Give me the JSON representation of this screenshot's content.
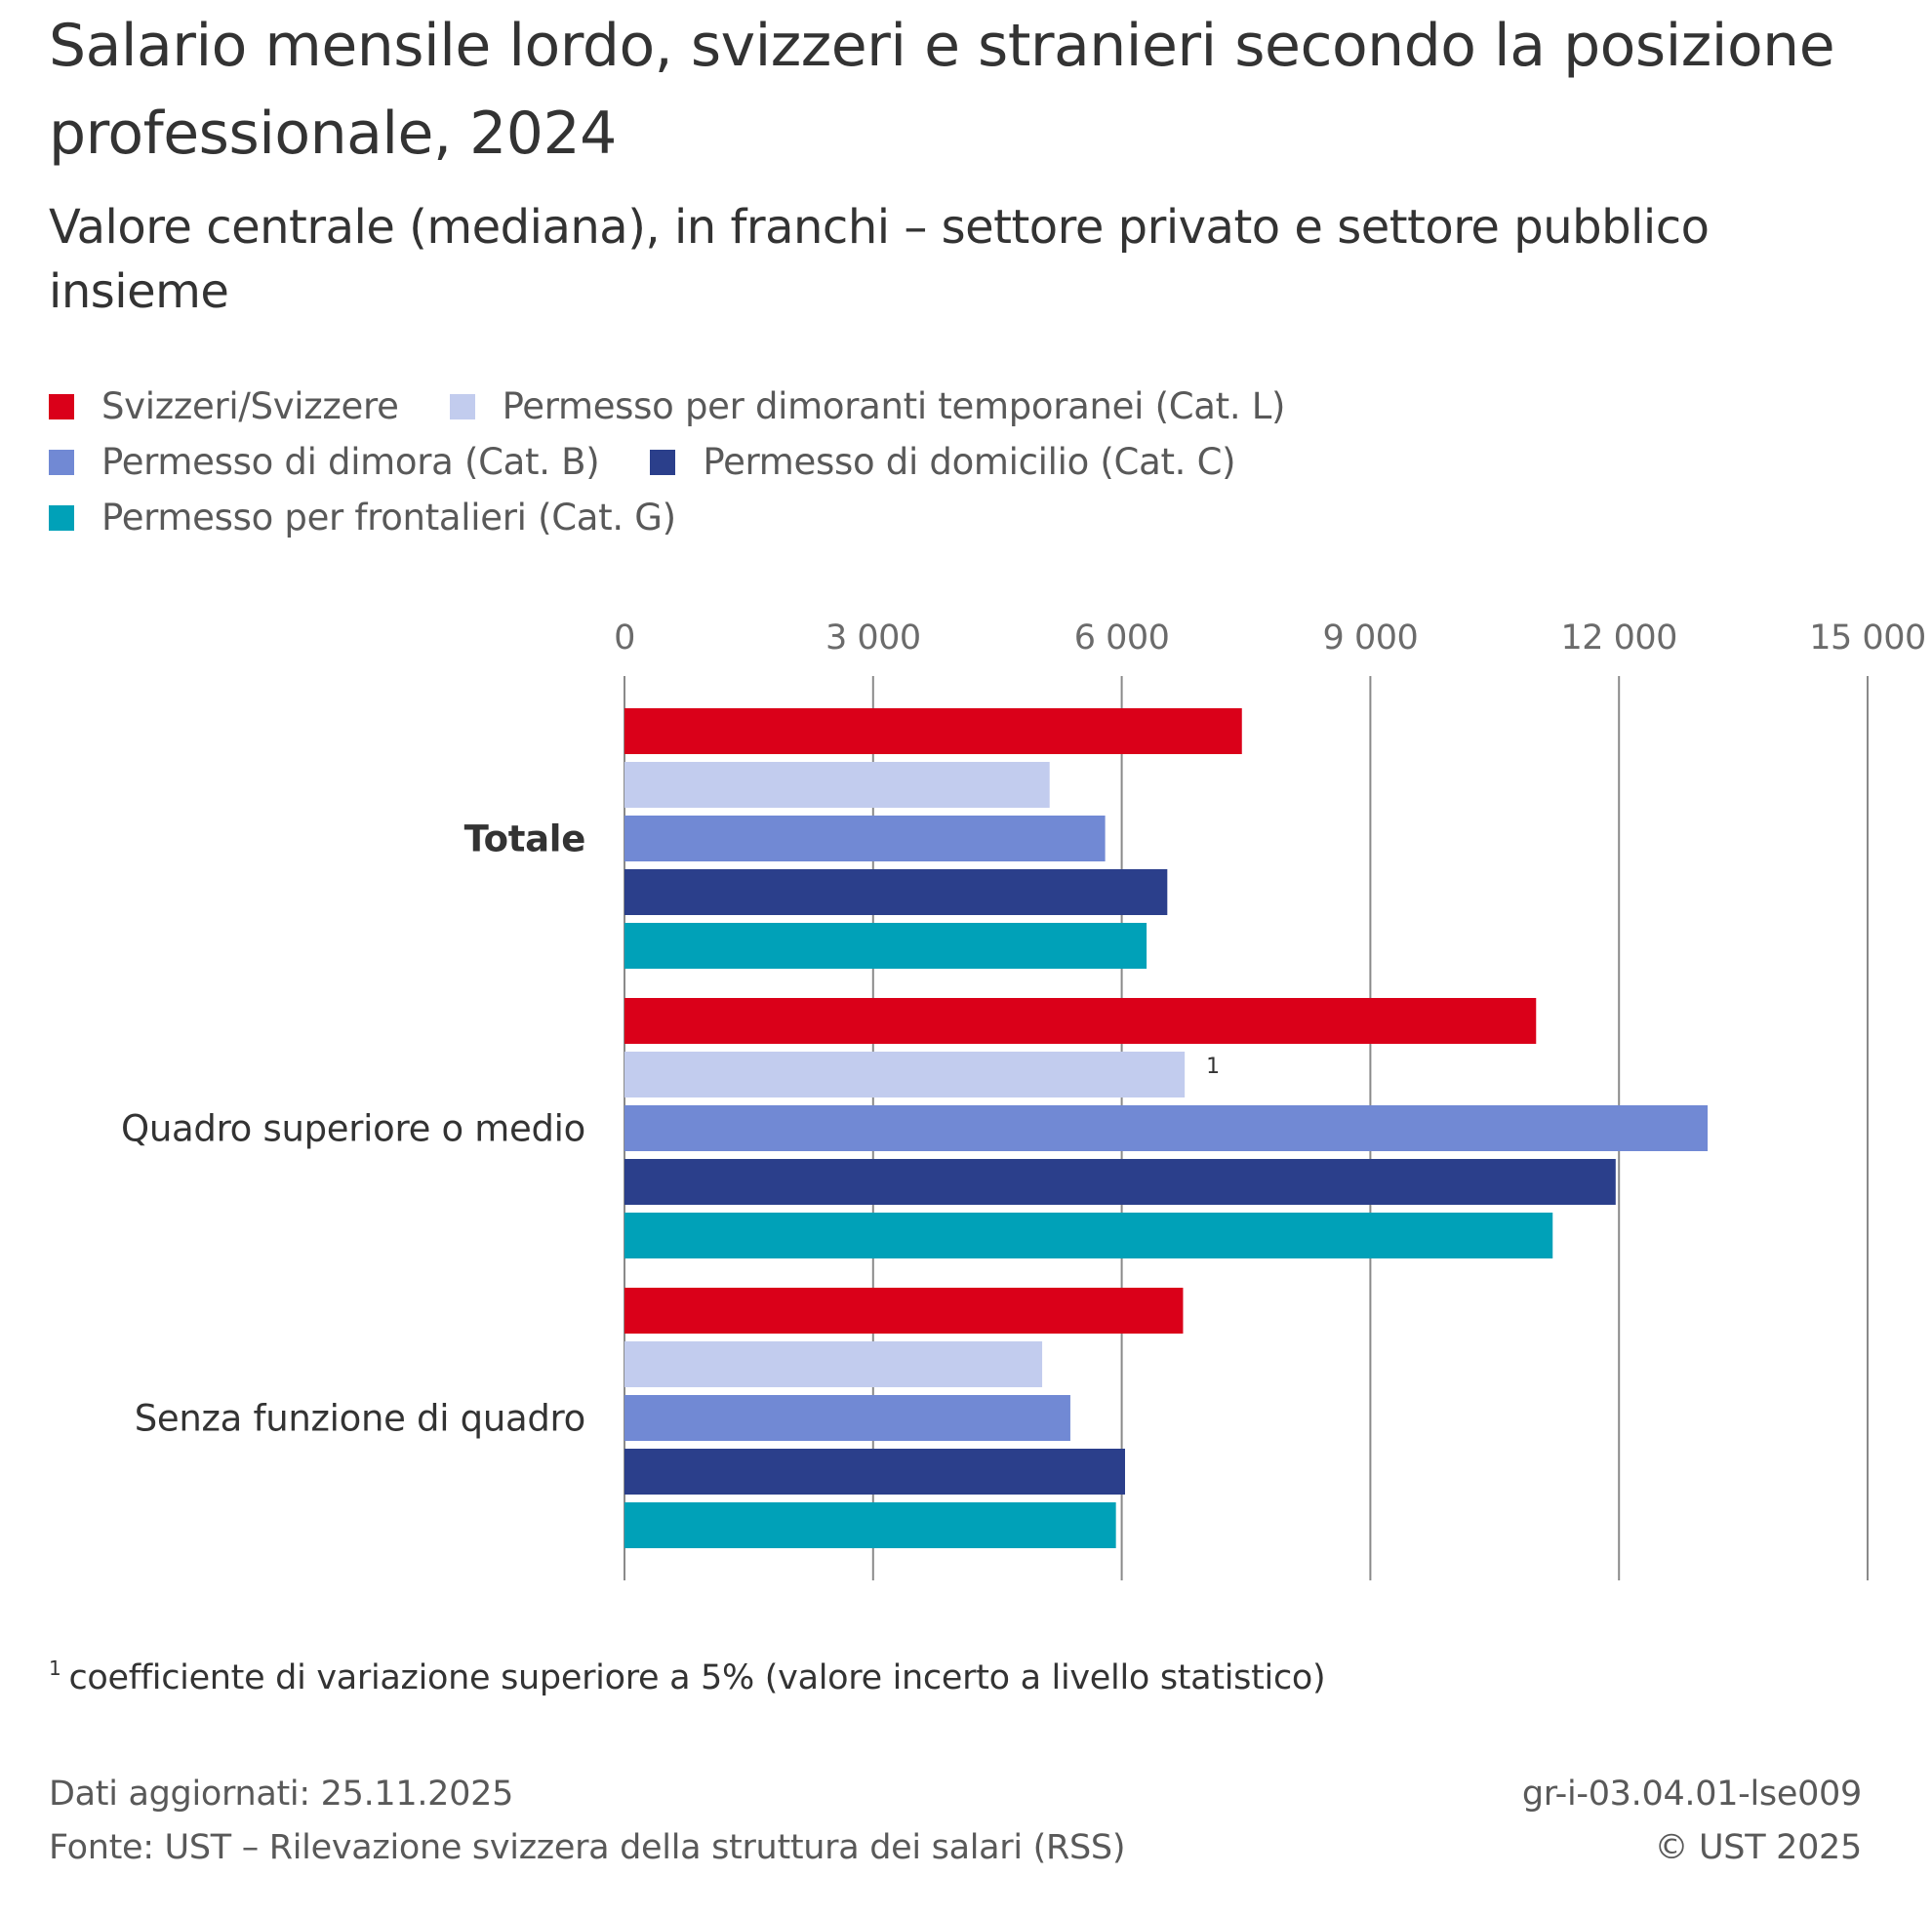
{
  "header": {
    "title": "Salario mensile lordo, svizzeri e stranieri secondo la posizione professionale, 2024",
    "subtitle": "Valore centrale (mediana), in franchi – settore privato e settore pubblico insieme"
  },
  "legend": {
    "rows": [
      [
        {
          "label": "Svizzeri/Svizzere",
          "color": "#DA0019"
        },
        {
          "label": "Permesso per dimoranti temporanei (Cat. L)",
          "color": "#C2CCEE"
        }
      ],
      [
        {
          "label": "Permesso di dimora (Cat. B)",
          "color": "#7189D4"
        },
        {
          "label": "Permesso di domicilio (Cat. C)",
          "color": "#2B3F8B"
        }
      ],
      [
        {
          "label": "Permesso per frontalieri (Cat. G)",
          "color": "#00A1B8"
        }
      ]
    ]
  },
  "chart_data": {
    "type": "bar",
    "orientation": "horizontal",
    "title": "Salario mensile lordo, svizzeri e stranieri secondo la posizione professionale, 2024",
    "subtitle": "Valore centrale (mediana), in franchi – settore privato e settore pubblico insieme",
    "xlabel": "",
    "ylabel": "",
    "xlim": [
      0,
      15000
    ],
    "xticks": [
      0,
      3000,
      6000,
      9000,
      12000,
      15000
    ],
    "xtick_labels": [
      "0",
      "3 000",
      "6 000",
      "9 000",
      "12 000",
      "15 000"
    ],
    "grid": true,
    "legend_position": "top-left",
    "categories": [
      "Totale",
      "Quadro superiore o medio",
      "Senza funzione di quadro"
    ],
    "category_bold": [
      true,
      false,
      false
    ],
    "series": [
      {
        "name": "Svizzeri/Svizzere",
        "color": "#DA0019",
        "values": [
          7450,
          11000,
          6740
        ]
      },
      {
        "name": "Permesso per dimoranti temporanei (Cat. L)",
        "color": "#C2CCEE",
        "values": [
          5130,
          6760,
          5040
        ],
        "notes": [
          "",
          "1",
          ""
        ]
      },
      {
        "name": "Permesso di dimora (Cat. B)",
        "color": "#7189D4",
        "values": [
          5800,
          13070,
          5380
        ]
      },
      {
        "name": "Permesso di domicilio (Cat. C)",
        "color": "#2B3F8B",
        "values": [
          6550,
          11960,
          6040
        ]
      },
      {
        "name": "Permesso per frontalieri (Cat. G)",
        "color": "#00A1B8",
        "values": [
          6300,
          11200,
          5930
        ]
      }
    ]
  },
  "footnote": {
    "marker": "1",
    "text": "coefficiente di variazione superiore a 5% (valore incerto a livello statistico)"
  },
  "footer": {
    "updated": "Dati aggiornati: 25.11.2025",
    "source": "Fonte: UST – Rilevazione svizzera della struttura dei salari (RSS)",
    "code": "gr-i-03.04.01-lse009",
    "copyright": "© UST 2025"
  }
}
